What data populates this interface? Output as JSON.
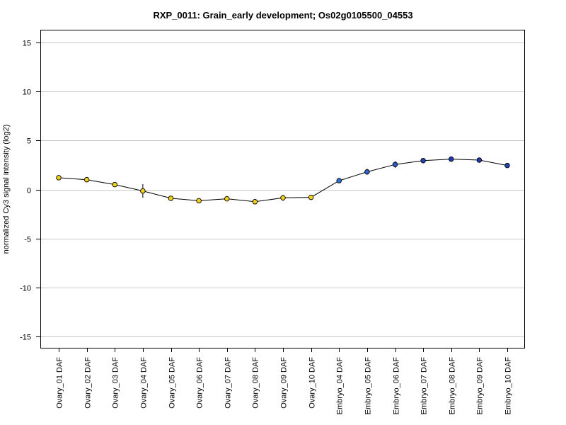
{
  "chart_data": {
    "type": "line",
    "title": "RXP_0011: Grain_early development; Os02g0105500_04553",
    "xlabel": "",
    "ylabel": "normalized Cy3 signal intensity (log2)",
    "ylim": [
      -16,
      16
    ],
    "yticks": [
      15,
      10,
      5,
      0,
      -5,
      -10,
      -15
    ],
    "ytick_labels": [
      "15",
      "10",
      "5",
      "0",
      "-5",
      "-10",
      "-15"
    ],
    "grid": "horizontal",
    "categories": [
      "Ovary_01 DAF",
      "Ovary_02 DAF",
      "Ovary_03 DAF",
      "Ovary_04 DAF",
      "Ovary_05 DAF",
      "Ovary_06 DAF",
      "Ovary_07 DAF",
      "Ovary_08 DAF",
      "Ovary_09 DAF",
      "Ovary_10 DAF",
      "Embryo_04 DAF",
      "Embryo_05 DAF",
      "Embryo_06 DAF",
      "Embryo_07 DAF",
      "Embryo_08 DAF",
      "Embryo_09 DAF",
      "Embryo_10 DAF"
    ],
    "values": [
      1.2,
      1.0,
      0.5,
      -0.15,
      -0.9,
      -1.15,
      -0.95,
      -1.25,
      -0.85,
      -0.8,
      0.9,
      1.8,
      2.55,
      2.95,
      3.1,
      3.0,
      2.45
    ],
    "error": [
      0.15,
      0.15,
      0.15,
      0.7,
      0.15,
      0.15,
      0.15,
      0.25,
      0.3,
      0.15,
      0.15,
      0.3,
      0.35,
      0.15,
      0.15,
      0.15,
      0.15
    ],
    "point_colors": [
      "#f2d11c",
      "#f2d11c",
      "#f2d11c",
      "#f2d11c",
      "#f2d11c",
      "#f2d11c",
      "#f2d11c",
      "#f2d11c",
      "#f2d11c",
      "#f2d11c",
      "#2f6fd6",
      "#2e63d0",
      "#2757c4",
      "#1f47b8",
      "#1a3aaf",
      "#1a3aaf",
      "#1f47b8"
    ],
    "line_color": "#000000",
    "grid_color": "#c8c8c8"
  }
}
